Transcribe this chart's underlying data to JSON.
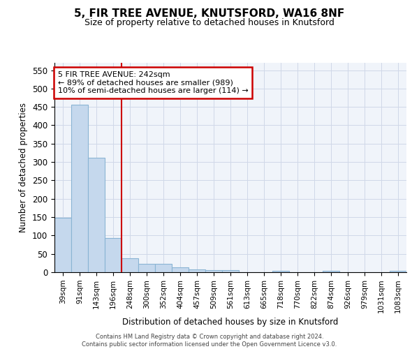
{
  "title1": "5, FIR TREE AVENUE, KNUTSFORD, WA16 8NF",
  "title2": "Size of property relative to detached houses in Knutsford",
  "xlabel": "Distribution of detached houses by size in Knutsford",
  "ylabel": "Number of detached properties",
  "categories": [
    "39sqm",
    "91sqm",
    "143sqm",
    "196sqm",
    "248sqm",
    "300sqm",
    "352sqm",
    "404sqm",
    "457sqm",
    "509sqm",
    "561sqm",
    "613sqm",
    "665sqm",
    "718sqm",
    "770sqm",
    "822sqm",
    "874sqm",
    "926sqm",
    "979sqm",
    "1031sqm",
    "1083sqm"
  ],
  "values": [
    148,
    456,
    311,
    93,
    38,
    22,
    22,
    13,
    7,
    6,
    5,
    0,
    0,
    4,
    0,
    0,
    4,
    0,
    0,
    0,
    4
  ],
  "bar_color": "#c5d8ed",
  "bar_edge_color": "#8ab4d4",
  "vline_color": "#cc0000",
  "annotation_line1": "5 FIR TREE AVENUE: 242sqm",
  "annotation_line2": "← 89% of detached houses are smaller (989)",
  "annotation_line3": "10% of semi-detached houses are larger (114) →",
  "annotation_box_color": "white",
  "annotation_box_edge": "#cc0000",
  "ylim": [
    0,
    570
  ],
  "yticks": [
    0,
    50,
    100,
    150,
    200,
    250,
    300,
    350,
    400,
    450,
    500,
    550
  ],
  "footer1": "Contains HM Land Registry data © Crown copyright and database right 2024.",
  "footer2": "Contains public sector information licensed under the Open Government Licence v3.0.",
  "bg_color": "#f0f4fa",
  "grid_color": "#d0d8e8"
}
